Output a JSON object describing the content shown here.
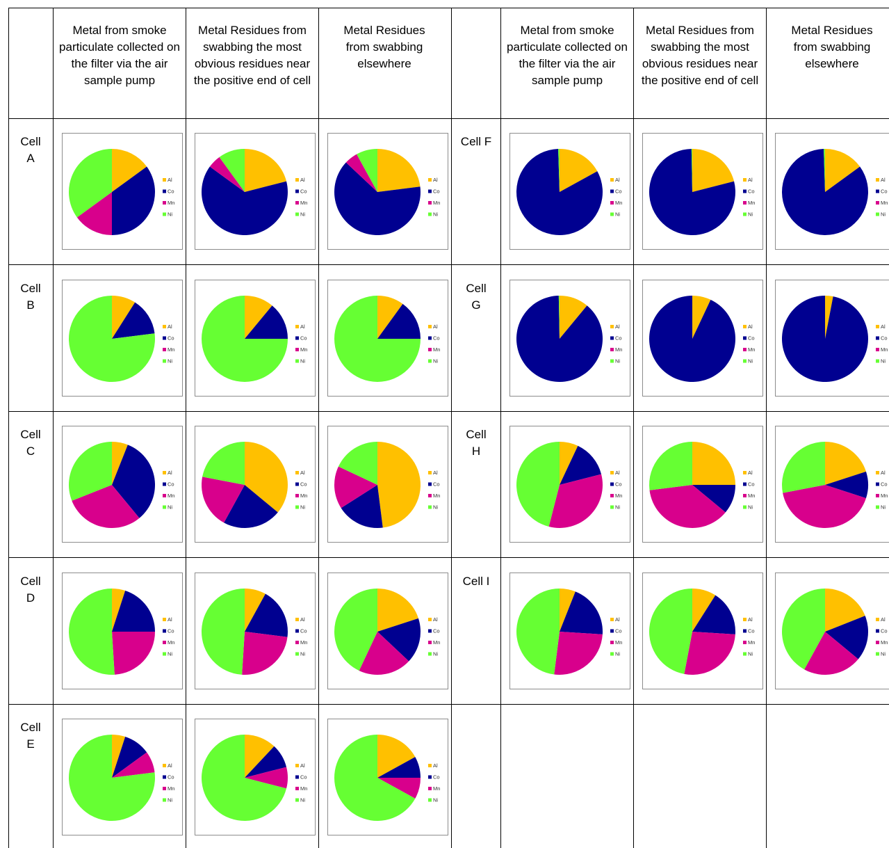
{
  "headers": [
    "Metal from smoke particulate collected on the filter via the air sample pump",
    "Metal Residues from swabbing the most obvious residues near the positive end of cell",
    "Metal Residues from swabbing elsewhere"
  ],
  "legend": [
    "Al",
    "Co",
    "Mn",
    "Ni"
  ],
  "colors": {
    "Al": "#FFC000",
    "Co": "#000090",
    "Mn": "#D8008C",
    "Ni": "#66FF33"
  },
  "cells": {
    "A": {
      "label": "Cell A"
    },
    "B": {
      "label": "Cell B"
    },
    "C": {
      "label": "Cell C"
    },
    "D": {
      "label": "Cell D"
    },
    "E": {
      "label": "Cell E"
    },
    "F": {
      "label": "Cell F"
    },
    "G": {
      "label": "Cell G"
    },
    "H": {
      "label": "Cell H"
    },
    "I": {
      "label": "Cell I"
    }
  },
  "chart_data": [
    {
      "type": "pie",
      "cell": "A",
      "column": 1,
      "labels": [
        "Al",
        "Co",
        "Mn",
        "Ni"
      ],
      "values": [
        15,
        35,
        15,
        35
      ]
    },
    {
      "type": "pie",
      "cell": "A",
      "column": 2,
      "labels": [
        "Al",
        "Co",
        "Mn",
        "Ni"
      ],
      "values": [
        21,
        64,
        5,
        10
      ]
    },
    {
      "type": "pie",
      "cell": "A",
      "column": 3,
      "labels": [
        "Al",
        "Co",
        "Mn",
        "Ni"
      ],
      "values": [
        23,
        64,
        5,
        8
      ]
    },
    {
      "type": "pie",
      "cell": "B",
      "column": 1,
      "labels": [
        "Al",
        "Co",
        "Mn",
        "Ni"
      ],
      "values": [
        9,
        14,
        0,
        77
      ]
    },
    {
      "type": "pie",
      "cell": "B",
      "column": 2,
      "labels": [
        "Al",
        "Co",
        "Mn",
        "Ni"
      ],
      "values": [
        11,
        14,
        0,
        75
      ]
    },
    {
      "type": "pie",
      "cell": "B",
      "column": 3,
      "labels": [
        "Al",
        "Co",
        "Mn",
        "Ni"
      ],
      "values": [
        10,
        15,
        0,
        75
      ]
    },
    {
      "type": "pie",
      "cell": "C",
      "column": 1,
      "labels": [
        "Al",
        "Co",
        "Mn",
        "Ni"
      ],
      "values": [
        6,
        33,
        30,
        31
      ]
    },
    {
      "type": "pie",
      "cell": "C",
      "column": 2,
      "labels": [
        "Al",
        "Co",
        "Mn",
        "Ni"
      ],
      "values": [
        36,
        22,
        20,
        22
      ]
    },
    {
      "type": "pie",
      "cell": "C",
      "column": 3,
      "labels": [
        "Al",
        "Co",
        "Mn",
        "Ni"
      ],
      "values": [
        48,
        18,
        16,
        18
      ]
    },
    {
      "type": "pie",
      "cell": "D",
      "column": 1,
      "labels": [
        "Al",
        "Co",
        "Mn",
        "Ni"
      ],
      "values": [
        5,
        20,
        24,
        51
      ]
    },
    {
      "type": "pie",
      "cell": "D",
      "column": 2,
      "labels": [
        "Al",
        "Co",
        "Mn",
        "Ni"
      ],
      "values": [
        8,
        19,
        24,
        49
      ]
    },
    {
      "type": "pie",
      "cell": "D",
      "column": 3,
      "labels": [
        "Al",
        "Co",
        "Mn",
        "Ni"
      ],
      "values": [
        20,
        17,
        20,
        43
      ]
    },
    {
      "type": "pie",
      "cell": "E",
      "column": 1,
      "labels": [
        "Al",
        "Co",
        "Mn",
        "Ni"
      ],
      "values": [
        5,
        10,
        8,
        77
      ]
    },
    {
      "type": "pie",
      "cell": "E",
      "column": 2,
      "labels": [
        "Al",
        "Co",
        "Mn",
        "Ni"
      ],
      "values": [
        12,
        9,
        8,
        71
      ]
    },
    {
      "type": "pie",
      "cell": "E",
      "column": 3,
      "labels": [
        "Al",
        "Co",
        "Mn",
        "Ni"
      ],
      "values": [
        17,
        8,
        8,
        67
      ]
    },
    {
      "type": "pie",
      "cell": "F",
      "column": 1,
      "labels": [
        "Al",
        "Co",
        "Mn",
        "Ni"
      ],
      "values": [
        17,
        82.5,
        0,
        0.5
      ]
    },
    {
      "type": "pie",
      "cell": "F",
      "column": 2,
      "labels": [
        "Al",
        "Co",
        "Mn",
        "Ni"
      ],
      "values": [
        21,
        78.7,
        0,
        0.3
      ]
    },
    {
      "type": "pie",
      "cell": "F",
      "column": 3,
      "labels": [
        "Al",
        "Co",
        "Mn",
        "Ni"
      ],
      "values": [
        15,
        84.5,
        0,
        0.5
      ]
    },
    {
      "type": "pie",
      "cell": "G",
      "column": 1,
      "labels": [
        "Al",
        "Co",
        "Mn",
        "Ni"
      ],
      "values": [
        11,
        88.7,
        0,
        0.3
      ]
    },
    {
      "type": "pie",
      "cell": "G",
      "column": 2,
      "labels": [
        "Al",
        "Co",
        "Mn",
        "Ni"
      ],
      "values": [
        7,
        93,
        0,
        0
      ]
    },
    {
      "type": "pie",
      "cell": "G",
      "column": 3,
      "labels": [
        "Al",
        "Co",
        "Mn",
        "Ni"
      ],
      "values": [
        3,
        97,
        0,
        0
      ]
    },
    {
      "type": "pie",
      "cell": "H",
      "column": 1,
      "labels": [
        "Al",
        "Co",
        "Mn",
        "Ni"
      ],
      "values": [
        7,
        14,
        33,
        46
      ]
    },
    {
      "type": "pie",
      "cell": "H",
      "column": 2,
      "labels": [
        "Al",
        "Co",
        "Mn",
        "Ni"
      ],
      "values": [
        25,
        11,
        37,
        27
      ]
    },
    {
      "type": "pie",
      "cell": "H",
      "column": 3,
      "labels": [
        "Al",
        "Co",
        "Mn",
        "Ni"
      ],
      "values": [
        20,
        10,
        42,
        28
      ]
    },
    {
      "type": "pie",
      "cell": "I",
      "column": 1,
      "labels": [
        "Al",
        "Co",
        "Mn",
        "Ni"
      ],
      "values": [
        6,
        20,
        26,
        48
      ]
    },
    {
      "type": "pie",
      "cell": "I",
      "column": 2,
      "labels": [
        "Al",
        "Co",
        "Mn",
        "Ni"
      ],
      "values": [
        9,
        17,
        27,
        47
      ]
    },
    {
      "type": "pie",
      "cell": "I",
      "column": 3,
      "labels": [
        "Al",
        "Co",
        "Mn",
        "Ni"
      ],
      "values": [
        19,
        17,
        22,
        42
      ]
    }
  ]
}
